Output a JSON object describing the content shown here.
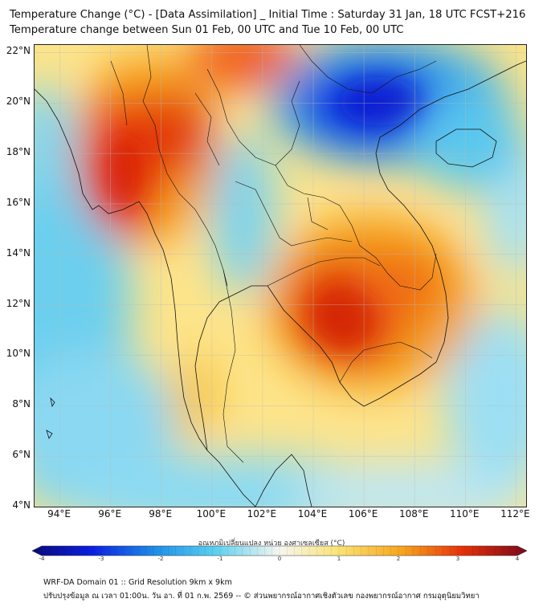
{
  "title_line1": "Temperature Change (°C) - [Data Assimilation] _ Initial Time : Saturday 31 Jan, 18 UTC FCST+216",
  "title_line2": "Temperature change between Sun 01 Feb, 00 UTC and Tue 10 Feb, 00 UTC",
  "map": {
    "lat_labels": [
      "22°N",
      "20°N",
      "18°N",
      "16°N",
      "14°N",
      "12°N",
      "10°N",
      "8°N",
      "6°N",
      "4°N"
    ],
    "lon_labels": [
      "94°E",
      "96°E",
      "98°E",
      "100°E",
      "102°E",
      "104°E",
      "106°E",
      "108°E",
      "110°E",
      "112°E"
    ],
    "lat_range": [
      4,
      22.3
    ],
    "lon_range": [
      93,
      112.4
    ],
    "colors": {
      "warm": "#d81b00",
      "neutral": "#ffe680",
      "cool": "#5ccaee",
      "cold": "#0a1ad8",
      "grid": "#bbbbbb",
      "border": "#111111"
    }
  },
  "colorbar": {
    "title": "อุณหภูมิเปลี่ยนแปลง หน่วย องศาเซลเซียส (°C)",
    "ticks": [
      "-4",
      "-3",
      "-2",
      "-1",
      "0",
      "1",
      "2",
      "3",
      "4"
    ],
    "range": [
      -4,
      4
    ]
  },
  "footer": {
    "line1": "WRF-DA Domain 01 :: Grid Resolution 9km x 9km",
    "line2": "ปรับปรุงข้อมูล ณ เวลา 01:00น. วัน อา. ที่ 01 ก.พ. 2569 -- © ส่วนพยากรณ์อากาศเชิงตัวเลข กองพยากรณ์อากาศ กรมอุตุนิยมวิทยา"
  }
}
